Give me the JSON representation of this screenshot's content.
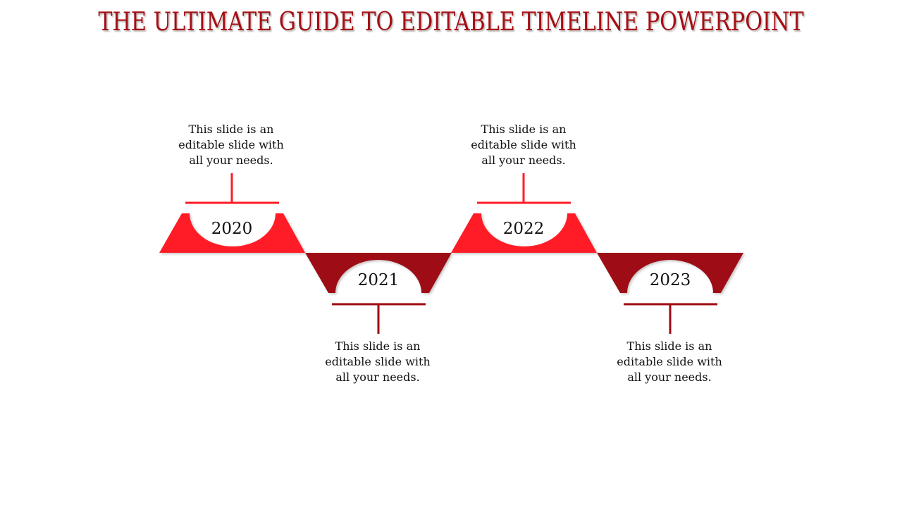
{
  "slide": {
    "title": "THE ULTIMATE GUIDE TO EDITABLE TIMELINE POWERPOINT"
  },
  "colors": {
    "title": "#a50f15",
    "bright_red": "#ff1c27",
    "dark_red": "#9e0a12",
    "text": "#111111"
  },
  "milestones": [
    {
      "year": "2020",
      "position": "top",
      "color": "bright_red",
      "desc": [
        "This slide is an",
        "editable slide with",
        "all your needs."
      ]
    },
    {
      "year": "2021",
      "position": "bottom",
      "color": "dark_red",
      "desc": [
        "This slide is an",
        "editable slide with",
        "all your needs."
      ]
    },
    {
      "year": "2022",
      "position": "top",
      "color": "bright_red",
      "desc": [
        "This slide is an",
        "editable slide with",
        "all your needs."
      ]
    },
    {
      "year": "2023",
      "position": "bottom",
      "color": "dark_red",
      "desc": [
        "This slide is an",
        "editable slide with",
        "all your needs."
      ]
    }
  ]
}
